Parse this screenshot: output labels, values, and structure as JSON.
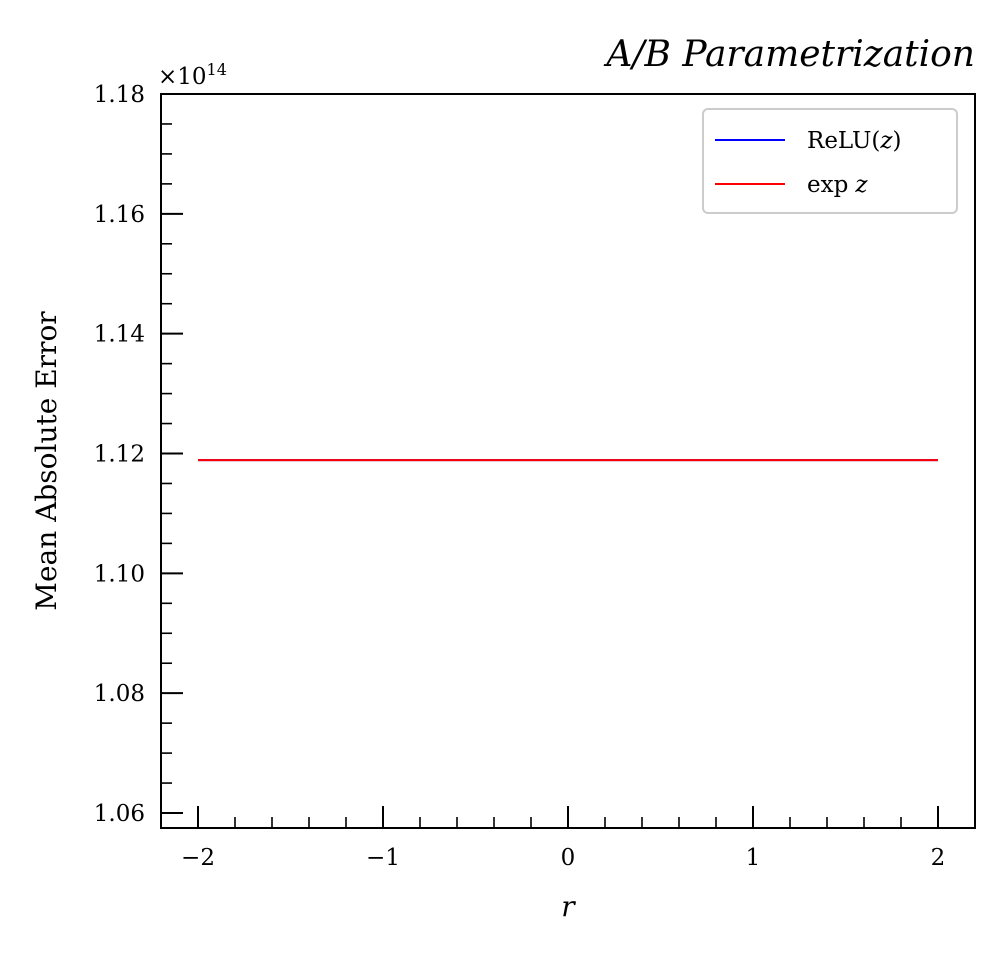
{
  "chart_data": {
    "type": "line",
    "title": "A/B Parametrization",
    "xlabel": "r",
    "ylabel": "Mean Absolute Error",
    "offset_label": "×10",
    "offset_exponent": "14",
    "xlim": [
      -2.2,
      2.2
    ],
    "ylim": [
      1.0575,
      1.18
    ],
    "xticks": [
      -2,
      -1,
      0,
      1,
      2
    ],
    "xtick_labels": [
      "−2",
      "−1",
      "0",
      "1",
      "2"
    ],
    "yticks": [
      1.06,
      1.08,
      1.1,
      1.12,
      1.14,
      1.16,
      1.18
    ],
    "ytick_labels": [
      "1.06",
      "1.08",
      "1.10",
      "1.12",
      "1.14",
      "1.16",
      "1.18"
    ],
    "grid": false,
    "legend_position": "top-right",
    "series": [
      {
        "name": "ReLU(z)",
        "legend_main": "ReLU(",
        "legend_var": "z",
        "legend_close": ")",
        "color": "#0000ff",
        "x": [
          -2,
          -1,
          0,
          1,
          2
        ],
        "y": [
          1.1189,
          1.1189,
          1.1189,
          1.1189,
          1.1189
        ]
      },
      {
        "name": "exp z",
        "legend_main": "exp",
        "legend_var": "z",
        "legend_close": "",
        "color": "#ff0000",
        "x": [
          -2,
          -1,
          0,
          1,
          2
        ],
        "y": [
          1.1189,
          1.1189,
          1.1189,
          1.1189,
          1.1189
        ]
      }
    ]
  }
}
